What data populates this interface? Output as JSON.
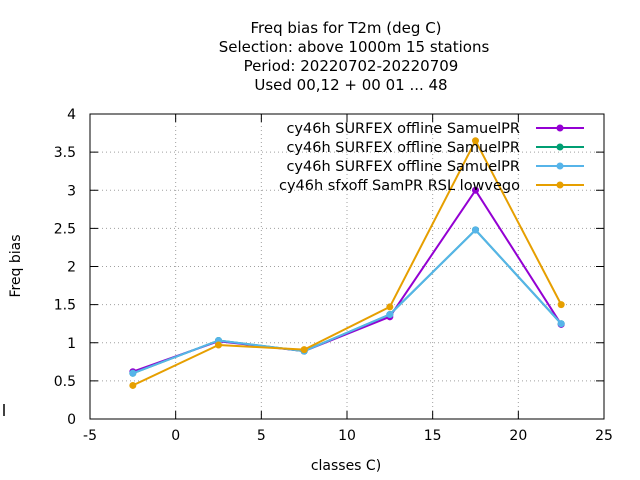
{
  "chart_data": {
    "type": "line",
    "title_lines": [
      "Freq bias  for T2m (deg C)",
      "Selection: above  1000m      15 stations",
      "Period: 20220702-20220709",
      "Used  00,12  + 00 01 ... 48"
    ],
    "xlabel": "classes C)",
    "ylabel": "Freq bias",
    "xlim": [
      -5,
      25
    ],
    "ylim": [
      0,
      4
    ],
    "xticks": [
      -5,
      0,
      5,
      10,
      15,
      20,
      25
    ],
    "yticks": [
      0,
      0.5,
      1,
      1.5,
      2,
      2.5,
      3,
      3.5,
      4
    ],
    "grid": true,
    "legend_position": "top-right",
    "x": [
      -2.5,
      2.5,
      7.5,
      12.5,
      17.5,
      22.5
    ],
    "series": [
      {
        "name": "cy46h_SURFEX_offline_SamuelPR",
        "legend_text": "cy46h SURFEX offline SamuelPR",
        "color": "#9400d3",
        "values": [
          0.62,
          1.02,
          0.89,
          1.34,
          3.0,
          1.24
        ]
      },
      {
        "name": "cy46h_SURFEX_offline_SamuelPR",
        "legend_text": "cy46h SURFEX offline SamuelPR",
        "color": "#009e73",
        "values": [
          0.6,
          1.03,
          0.89,
          1.37,
          2.48,
          1.25
        ]
      },
      {
        "name": "cy46h_SURFEX_offline_SamuelPR",
        "legend_text": "cy46h SURFEX offline SamuelPR",
        "color": "#56b4e9",
        "values": [
          0.6,
          1.03,
          0.89,
          1.37,
          2.48,
          1.25
        ]
      },
      {
        "name": "cy46h_sfxoff_SamPR_RSL_lowvego",
        "legend_text": "cy46h sfxoff SamPR RSL lowvego",
        "color": "#e69f00",
        "values": [
          0.44,
          0.97,
          0.91,
          1.47,
          3.65,
          1.5
        ]
      }
    ]
  }
}
